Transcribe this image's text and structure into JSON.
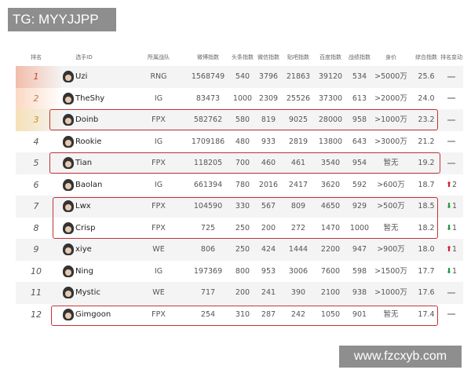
{
  "watermark_top": "TG: MYYJJPP",
  "watermark_bottom": "www.fzcxyb.com",
  "headers": [
    "排名",
    "选手ID",
    "所属战队",
    "微博指数",
    "头条指数",
    "微信指数",
    "贴吧指数",
    "百度指数",
    "战绩指数",
    "身价",
    "综合指数",
    "排名变动"
  ],
  "colors": {
    "highlight_border": "#c0323a",
    "up": "#d0202a",
    "down": "#1a9a3a",
    "gold": "#f5a623",
    "rank1": "#e0502a"
  },
  "rows": [
    {
      "rank": "1",
      "player": "Uzi",
      "team": "RNG",
      "weibo": "1568749",
      "toutiao": "540",
      "weixin": "3796",
      "tieba": "21863",
      "baidu": "39120",
      "record": "534",
      "value": ">5000万",
      "score": "25.6",
      "change": "",
      "dir": "none"
    },
    {
      "rank": "2",
      "player": "TheShy",
      "team": "IG",
      "weibo": "83473",
      "toutiao": "1000",
      "weixin": "2309",
      "tieba": "25526",
      "baidu": "37300",
      "record": "613",
      "value": ">2000万",
      "score": "24.0",
      "change": "",
      "dir": "none"
    },
    {
      "rank": "3",
      "player": "Doinb",
      "team": "FPX",
      "weibo": "582762",
      "toutiao": "580",
      "weixin": "819",
      "tieba": "9025",
      "baidu": "28000",
      "record": "958",
      "value": ">1000万",
      "score": "23.2",
      "change": "",
      "dir": "none"
    },
    {
      "rank": "4",
      "player": "Rookie",
      "team": "IG",
      "weibo": "1709186",
      "toutiao": "480",
      "weixin": "933",
      "tieba": "2819",
      "baidu": "13800",
      "record": "643",
      "value": ">3000万",
      "score": "21.2",
      "change": "",
      "dir": "none"
    },
    {
      "rank": "5",
      "player": "Tian",
      "team": "FPX",
      "weibo": "118205",
      "toutiao": "700",
      "weixin": "460",
      "tieba": "461",
      "baidu": "3540",
      "record": "954",
      "value": "暂无",
      "score": "19.2",
      "change": "",
      "dir": "none"
    },
    {
      "rank": "6",
      "player": "Baolan",
      "team": "IG",
      "weibo": "661394",
      "toutiao": "780",
      "weixin": "2016",
      "tieba": "2417",
      "baidu": "3620",
      "record": "592",
      "value": ">600万",
      "score": "18.7",
      "change": "2",
      "dir": "up"
    },
    {
      "rank": "7",
      "player": "Lwx",
      "team": "FPX",
      "weibo": "104590",
      "toutiao": "330",
      "weixin": "567",
      "tieba": "809",
      "baidu": "4650",
      "record": "929",
      "value": ">500万",
      "score": "18.5",
      "change": "1",
      "dir": "down"
    },
    {
      "rank": "8",
      "player": "Crisp",
      "team": "FPX",
      "weibo": "725",
      "toutiao": "250",
      "weixin": "200",
      "tieba": "272",
      "baidu": "1470",
      "record": "1000",
      "value": "暂无",
      "score": "18.2",
      "change": "1",
      "dir": "down"
    },
    {
      "rank": "9",
      "player": "xiye",
      "team": "WE",
      "weibo": "806",
      "toutiao": "250",
      "weixin": "424",
      "tieba": "1444",
      "baidu": "2200",
      "record": "947",
      "value": ">900万",
      "score": "18.0",
      "change": "1",
      "dir": "up"
    },
    {
      "rank": "10",
      "player": "Ning",
      "team": "IG",
      "weibo": "197369",
      "toutiao": "800",
      "weixin": "953",
      "tieba": "3006",
      "baidu": "7600",
      "record": "598",
      "value": ">1500万",
      "score": "17.7",
      "change": "1",
      "dir": "down"
    },
    {
      "rank": "11",
      "player": "Mystic",
      "team": "WE",
      "weibo": "717",
      "toutiao": "200",
      "weixin": "241",
      "tieba": "390",
      "baidu": "2100",
      "record": "938",
      "value": ">1000万",
      "score": "17.6",
      "change": "",
      "dir": "none"
    },
    {
      "rank": "12",
      "player": "Gimgoon",
      "team": "FPX",
      "weibo": "254",
      "toutiao": "310",
      "weixin": "287",
      "tieba": "242",
      "baidu": "1050",
      "record": "901",
      "value": "暂无",
      "score": "17.4",
      "change": "",
      "dir": "none"
    }
  ]
}
